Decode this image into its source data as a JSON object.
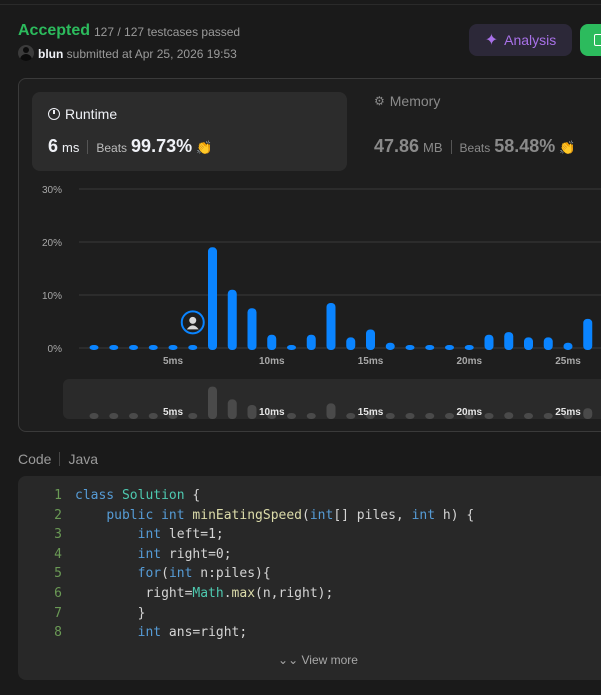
{
  "header": {
    "status": "Accepted",
    "testcases": "127 / 127 testcases passed",
    "user": "blun",
    "submitted_text": "submitted at Apr 25, 2026 19:53",
    "analysis_label": "Analysis",
    "colors": {
      "accepted": "#2cbb5d",
      "analysis": "#a871e8",
      "bar": "#0a84ff"
    }
  },
  "runtime": {
    "title": "Runtime",
    "value": "6",
    "unit": "ms",
    "beats_label": "Beats",
    "beats_pct": "99.73%"
  },
  "memory": {
    "title": "Memory",
    "value": "47.86",
    "unit": "MB",
    "beats_label": "Beats",
    "beats_pct": "58.48%"
  },
  "chart_data": {
    "type": "bar",
    "title": "",
    "xlabel": "",
    "ylabel": "",
    "y_ticks": [
      "30%",
      "20%",
      "10%",
      "0%"
    ],
    "ylim": [
      0,
      30
    ],
    "x_ticks": [
      "5ms",
      "10ms",
      "15ms",
      "20ms",
      "25ms"
    ],
    "x_tick_values": [
      5,
      10,
      15,
      20,
      25
    ],
    "categories": [
      1,
      2,
      3,
      4,
      5,
      6,
      7,
      8,
      9,
      10,
      11,
      12,
      13,
      14,
      15,
      16,
      17,
      18,
      19,
      20,
      21,
      22,
      23,
      24,
      25,
      26
    ],
    "values": [
      0.5,
      0.5,
      0.5,
      0.5,
      0.5,
      0.5,
      19,
      11,
      7.5,
      2.5,
      0.5,
      2.5,
      8.5,
      2,
      3.5,
      1,
      0.5,
      0.5,
      0.5,
      0.5,
      2.5,
      3,
      2,
      2,
      1,
      5.5
    ],
    "highlight_x": 6,
    "grid": true
  },
  "code": {
    "label": "Code",
    "language": "Java",
    "lines": [
      "class Solution {",
      "    public int minEatingSpeed(int[] piles, int h) {",
      "        int left=1;",
      "        int right=0;",
      "        for(int n:piles){",
      "         right=Math.max(n,right);",
      "        }",
      "        int ans=right;"
    ],
    "view_more": "View more"
  }
}
